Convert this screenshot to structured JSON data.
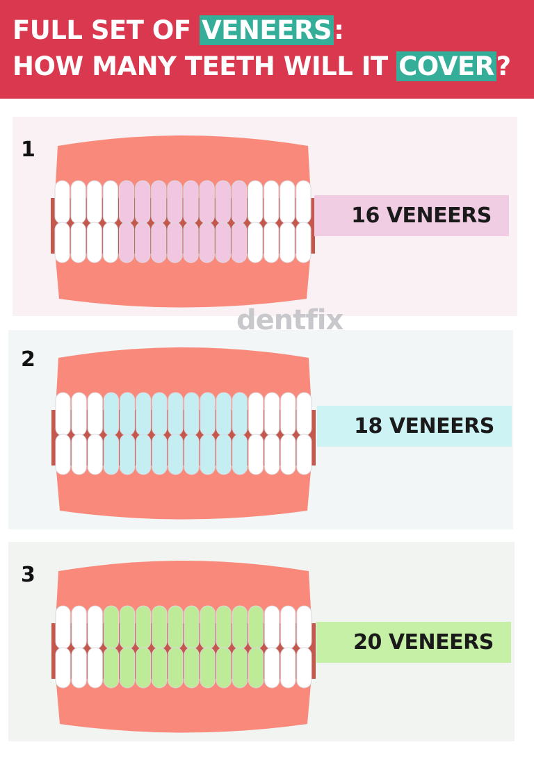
{
  "header": {
    "line1_prefix": "FULL SET OF ",
    "line1_highlight": "VENEERS",
    "line1_suffix": ":",
    "line2_prefix": "HOW MANY TEETH WILL IT ",
    "line2_highlight": "COVER",
    "line2_suffix": "?",
    "background": "#d9384f",
    "highlight_color": "#35ae99"
  },
  "logo": "dentfix",
  "options": [
    {
      "number": "1",
      "label": "16 VENEERS",
      "veneers": 16,
      "panel_color": "#f9f1f3",
      "label_color": "#f1cde4",
      "veneer_color": "#f0c6e0"
    },
    {
      "number": "2",
      "label": "18 VENEERS",
      "veneers": 18,
      "panel_color": "#f2f6f6",
      "label_color": "#cef3f5",
      "veneer_color": "#c5eef3"
    },
    {
      "number": "3",
      "label": "20 VENEERS",
      "veneers": 20,
      "panel_color": "#f2f4f2",
      "label_color": "#c6f0a5",
      "veneer_color": "#bdeb98"
    }
  ]
}
